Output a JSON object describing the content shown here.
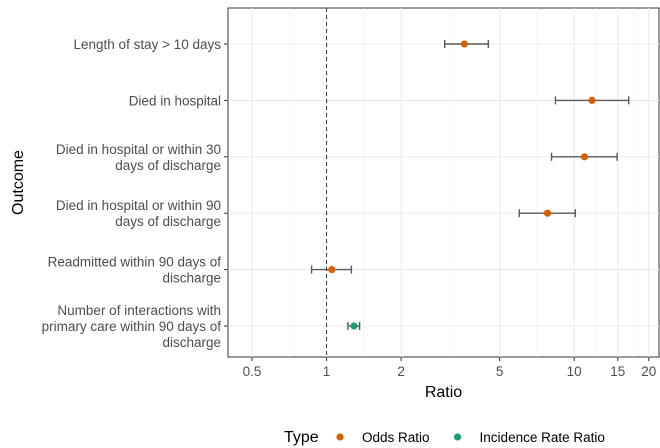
{
  "chart_data": {
    "type": "forest",
    "xlabel": "Ratio",
    "ylabel": "Outcome",
    "x_scale": "log",
    "xlim": [
      0.4,
      22
    ],
    "x_ticks": [
      0.5,
      1,
      2,
      5,
      10,
      15,
      20
    ],
    "x_tick_labels": [
      "0.5",
      "1",
      "2",
      "5",
      "10",
      "15",
      "20"
    ],
    "reference_line": 1,
    "grid": true,
    "legend": {
      "title": "Type",
      "placement": "bottom",
      "entries": [
        {
          "label": "Odds Ratio",
          "color": "#d95f02"
        },
        {
          "label": "Incidence Rate Ratio",
          "color": "#1b9e77"
        }
      ]
    },
    "rows": [
      {
        "label": [
          "Length of stay > 10 days"
        ],
        "estimate": 3.6,
        "low": 3.0,
        "high": 4.5,
        "type": "Odds Ratio"
      },
      {
        "label": [
          "Died in hospital"
        ],
        "estimate": 11.8,
        "low": 8.4,
        "high": 16.6,
        "type": "Odds Ratio"
      },
      {
        "label": [
          "Died in hospital or within 30",
          "days of discharge"
        ],
        "estimate": 11.0,
        "low": 8.1,
        "high": 14.9,
        "type": "Odds Ratio"
      },
      {
        "label": [
          "Died in hospital or within 90",
          "days of discharge"
        ],
        "estimate": 7.8,
        "low": 6.0,
        "high": 10.1,
        "type": "Odds Ratio"
      },
      {
        "label": [
          "Readmitted within 90 days of",
          "discharge"
        ],
        "estimate": 1.05,
        "low": 0.87,
        "high": 1.26,
        "type": "Odds Ratio"
      },
      {
        "label": [
          "Number of interactions with",
          "primary care within 90 days of",
          "discharge"
        ],
        "estimate": 1.29,
        "low": 1.22,
        "high": 1.36,
        "type": "Incidence Rate Ratio"
      }
    ]
  }
}
